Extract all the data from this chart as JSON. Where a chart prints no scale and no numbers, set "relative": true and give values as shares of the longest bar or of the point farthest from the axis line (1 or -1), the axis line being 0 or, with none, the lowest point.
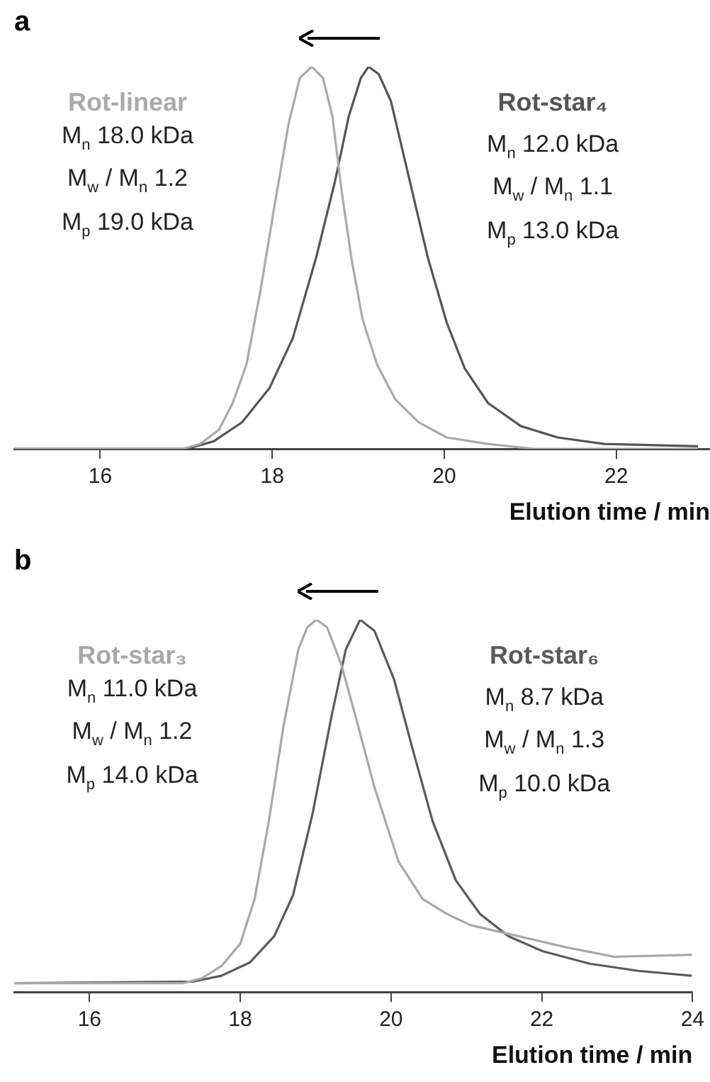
{
  "chart_data": [
    {
      "type": "line",
      "title": "a",
      "xlabel": "Elution time / min",
      "relative": true,
      "xlim": [
        15,
        23.09
      ],
      "xticks": [
        16,
        18,
        20,
        22
      ],
      "grid": false,
      "legend": false,
      "marker": "none",
      "line_style": "solid",
      "annotations": [
        "M$_{n}$ 18.0 kDa",
        "M$_{w}$ / M$_{n}$ 1.2",
        "M$_{p}$ 19.0 kDa",
        "M$_{n}$ 12.0 kDa",
        "M$_{w}$ / M$_{n}$ 1.1",
        "M$_{p}$ 13.0 kDa"
      ],
      "series": [
        {
          "name": "Rot-linear",
          "color": "#aaaaaa",
          "x": [
            15.0,
            16.95,
            17.16,
            17.38,
            17.54,
            17.7,
            17.86,
            18.03,
            18.19,
            18.32,
            18.46,
            18.59,
            18.7,
            18.81,
            18.92,
            19.05,
            19.22,
            19.43,
            19.7,
            20.03,
            20.51,
            21.05,
            22.95
          ],
          "values": [
            0,
            0,
            0.013,
            0.05,
            0.12,
            0.22,
            0.41,
            0.64,
            0.85,
            0.97,
            1,
            0.97,
            0.87,
            0.67,
            0.5,
            0.34,
            0.22,
            0.13,
            0.07,
            0.03,
            0.013,
            0,
            0
          ]
        },
        {
          "name": "Rot-star₄",
          "color": "#555555",
          "x": [
            15.0,
            17.0,
            17.32,
            17.65,
            17.97,
            18.24,
            18.51,
            18.73,
            18.89,
            19.03,
            19.12,
            19.24,
            19.38,
            19.59,
            19.81,
            20.03,
            20.24,
            20.51,
            20.89,
            21.32,
            21.86,
            22.95
          ],
          "values": [
            0,
            0,
            0.02,
            0.07,
            0.16,
            0.29,
            0.5,
            0.7,
            0.87,
            0.97,
            1,
            0.98,
            0.91,
            0.71,
            0.5,
            0.33,
            0.21,
            0.12,
            0.06,
            0.03,
            0.013,
            0.007
          ]
        }
      ]
    },
    {
      "type": "line",
      "title": "b",
      "xlabel": "Elution time / min",
      "relative": true,
      "xlim": [
        15,
        24
      ],
      "xticks": [
        16,
        18,
        20,
        22,
        24
      ],
      "grid": false,
      "legend": false,
      "marker": "none",
      "line_style": "solid",
      "annotations": [
        "M$_{n}$ 11.0 kDa",
        "M$_{w}$ / M$_{n}$ 1.2",
        "M$_{p}$ 14.0 kDa",
        "M$_{n}$ 8.7 kDa",
        "M$_{w}$ / M$_{n}$ 1.3",
        "M$_{p}$ 10.0 kDa"
      ],
      "series": [
        {
          "name": "Rot-star₃",
          "color": "#a8a8a8",
          "x": [
            15.0,
            17.24,
            17.49,
            17.75,
            18.0,
            18.19,
            18.38,
            18.57,
            18.77,
            18.89,
            19.01,
            19.15,
            19.34,
            19.53,
            19.78,
            20.1,
            20.42,
            20.74,
            21.05,
            21.69,
            22.33,
            22.96,
            23.99
          ],
          "values": [
            0.024,
            0.024,
            0.037,
            0.07,
            0.13,
            0.25,
            0.46,
            0.71,
            0.92,
            0.98,
            1,
            0.98,
            0.88,
            0.74,
            0.55,
            0.35,
            0.25,
            0.21,
            0.18,
            0.15,
            0.12,
            0.095,
            0.1
          ]
        },
        {
          "name": "Rot-star₆",
          "color": "#5a5a5a",
          "x": [
            15.0,
            17.37,
            17.75,
            18.13,
            18.45,
            18.7,
            18.96,
            19.21,
            19.4,
            19.59,
            19.78,
            20.04,
            20.29,
            20.55,
            20.86,
            21.18,
            21.56,
            22.01,
            22.64,
            23.28,
            23.99
          ],
          "values": [
            0.024,
            0.028,
            0.044,
            0.08,
            0.15,
            0.26,
            0.48,
            0.74,
            0.92,
            1,
            0.97,
            0.84,
            0.65,
            0.46,
            0.3,
            0.21,
            0.15,
            0.11,
            0.076,
            0.057,
            0.044
          ]
        }
      ]
    }
  ]
}
